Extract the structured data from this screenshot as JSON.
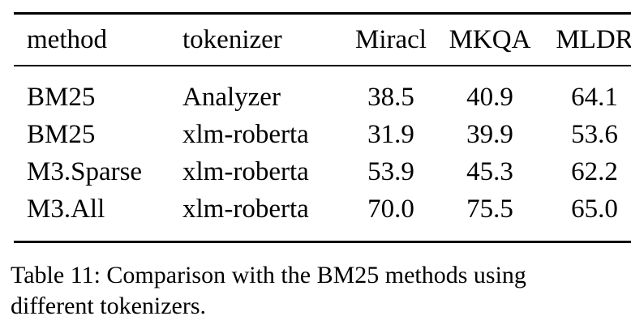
{
  "table": {
    "columns": [
      {
        "key": "method",
        "label": "method"
      },
      {
        "key": "tokenizer",
        "label": "tokenizer"
      },
      {
        "key": "miracl",
        "label": "Miracl"
      },
      {
        "key": "mkqa",
        "label": "MKQA"
      },
      {
        "key": "mldr",
        "label": "MLDR"
      }
    ],
    "rows": [
      {
        "method": "BM25",
        "tokenizer": "Analyzer",
        "miracl": "38.5",
        "mkqa": "40.9",
        "mldr": "64.1"
      },
      {
        "method": "BM25",
        "tokenizer": "xlm-roberta",
        "miracl": "31.9",
        "mkqa": "39.9",
        "mldr": "53.6"
      },
      {
        "method": "M3.Sparse",
        "tokenizer": "xlm-roberta",
        "miracl": "53.9",
        "mkqa": "45.3",
        "mldr": "62.2"
      },
      {
        "method": "M3.All",
        "tokenizer": "xlm-roberta",
        "miracl": "70.0",
        "mkqa": "75.5",
        "mldr": "65.0"
      }
    ]
  },
  "caption": {
    "lines": [
      "Table 11: Comparison with the BM25 methods using",
      "different tokenizers."
    ]
  },
  "colors": {
    "text": "#000000",
    "background": "#ffffff",
    "rule": "#000000"
  }
}
